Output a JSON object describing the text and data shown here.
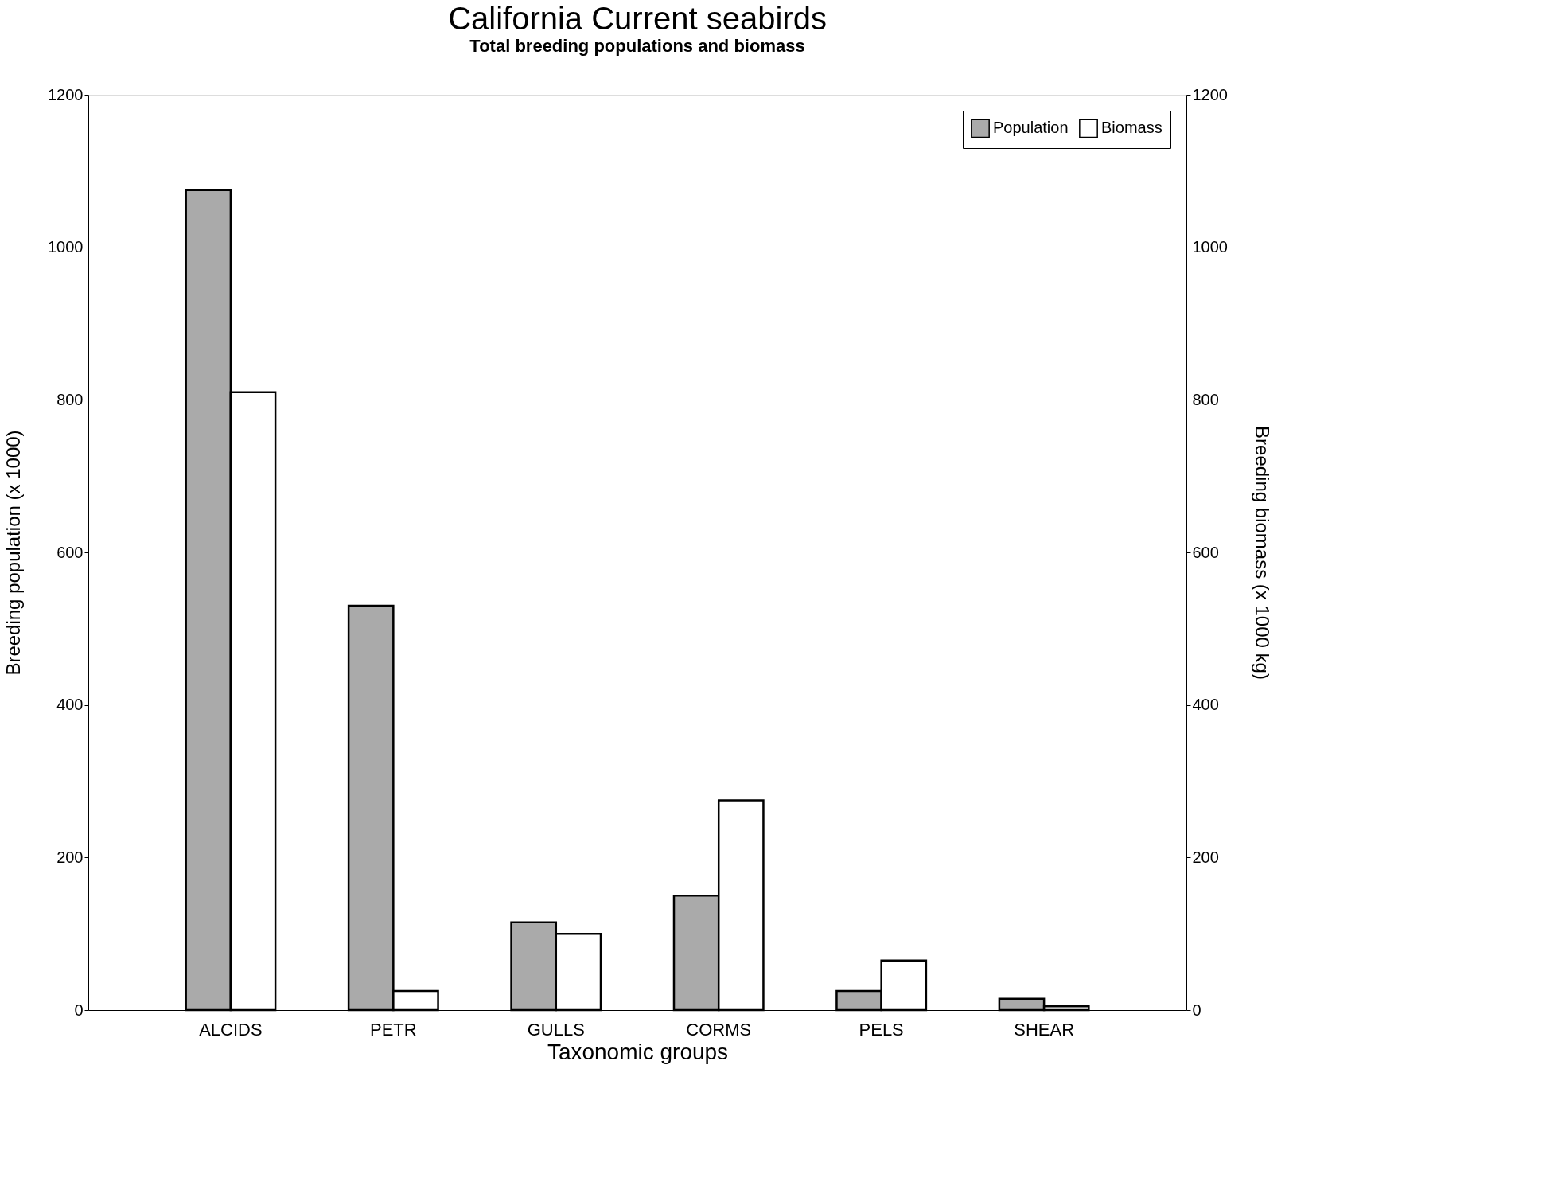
{
  "chart_data": {
    "type": "bar",
    "title": "California Current seabirds",
    "subtitle": "Total breeding populations and biomass",
    "xlabel": "Taxonomic groups",
    "ylabel": "Breeding population (x 1000)",
    "y2label": "Breeding biomass (x 1000 kg)",
    "categories": [
      "ALCIDS",
      "PETR",
      "GULLS",
      "CORMS",
      "PELS",
      "SHEAR"
    ],
    "series": [
      {
        "name": "Population",
        "color": "#aaaaaa",
        "values": [
          1075,
          530,
          115,
          150,
          25,
          15
        ]
      },
      {
        "name": "Biomass",
        "color": "#ffffff",
        "axis": "y2",
        "values": [
          810,
          25,
          100,
          275,
          65,
          5
        ]
      }
    ],
    "ylim": [
      0,
      1200
    ],
    "yticks": [
      0,
      200,
      400,
      600,
      800,
      1000,
      1200
    ],
    "y2lim": [
      0,
      1200
    ],
    "y2ticks": [
      0,
      200,
      400,
      600,
      800,
      1000,
      1200
    ],
    "grid": false,
    "legend": "top right"
  }
}
